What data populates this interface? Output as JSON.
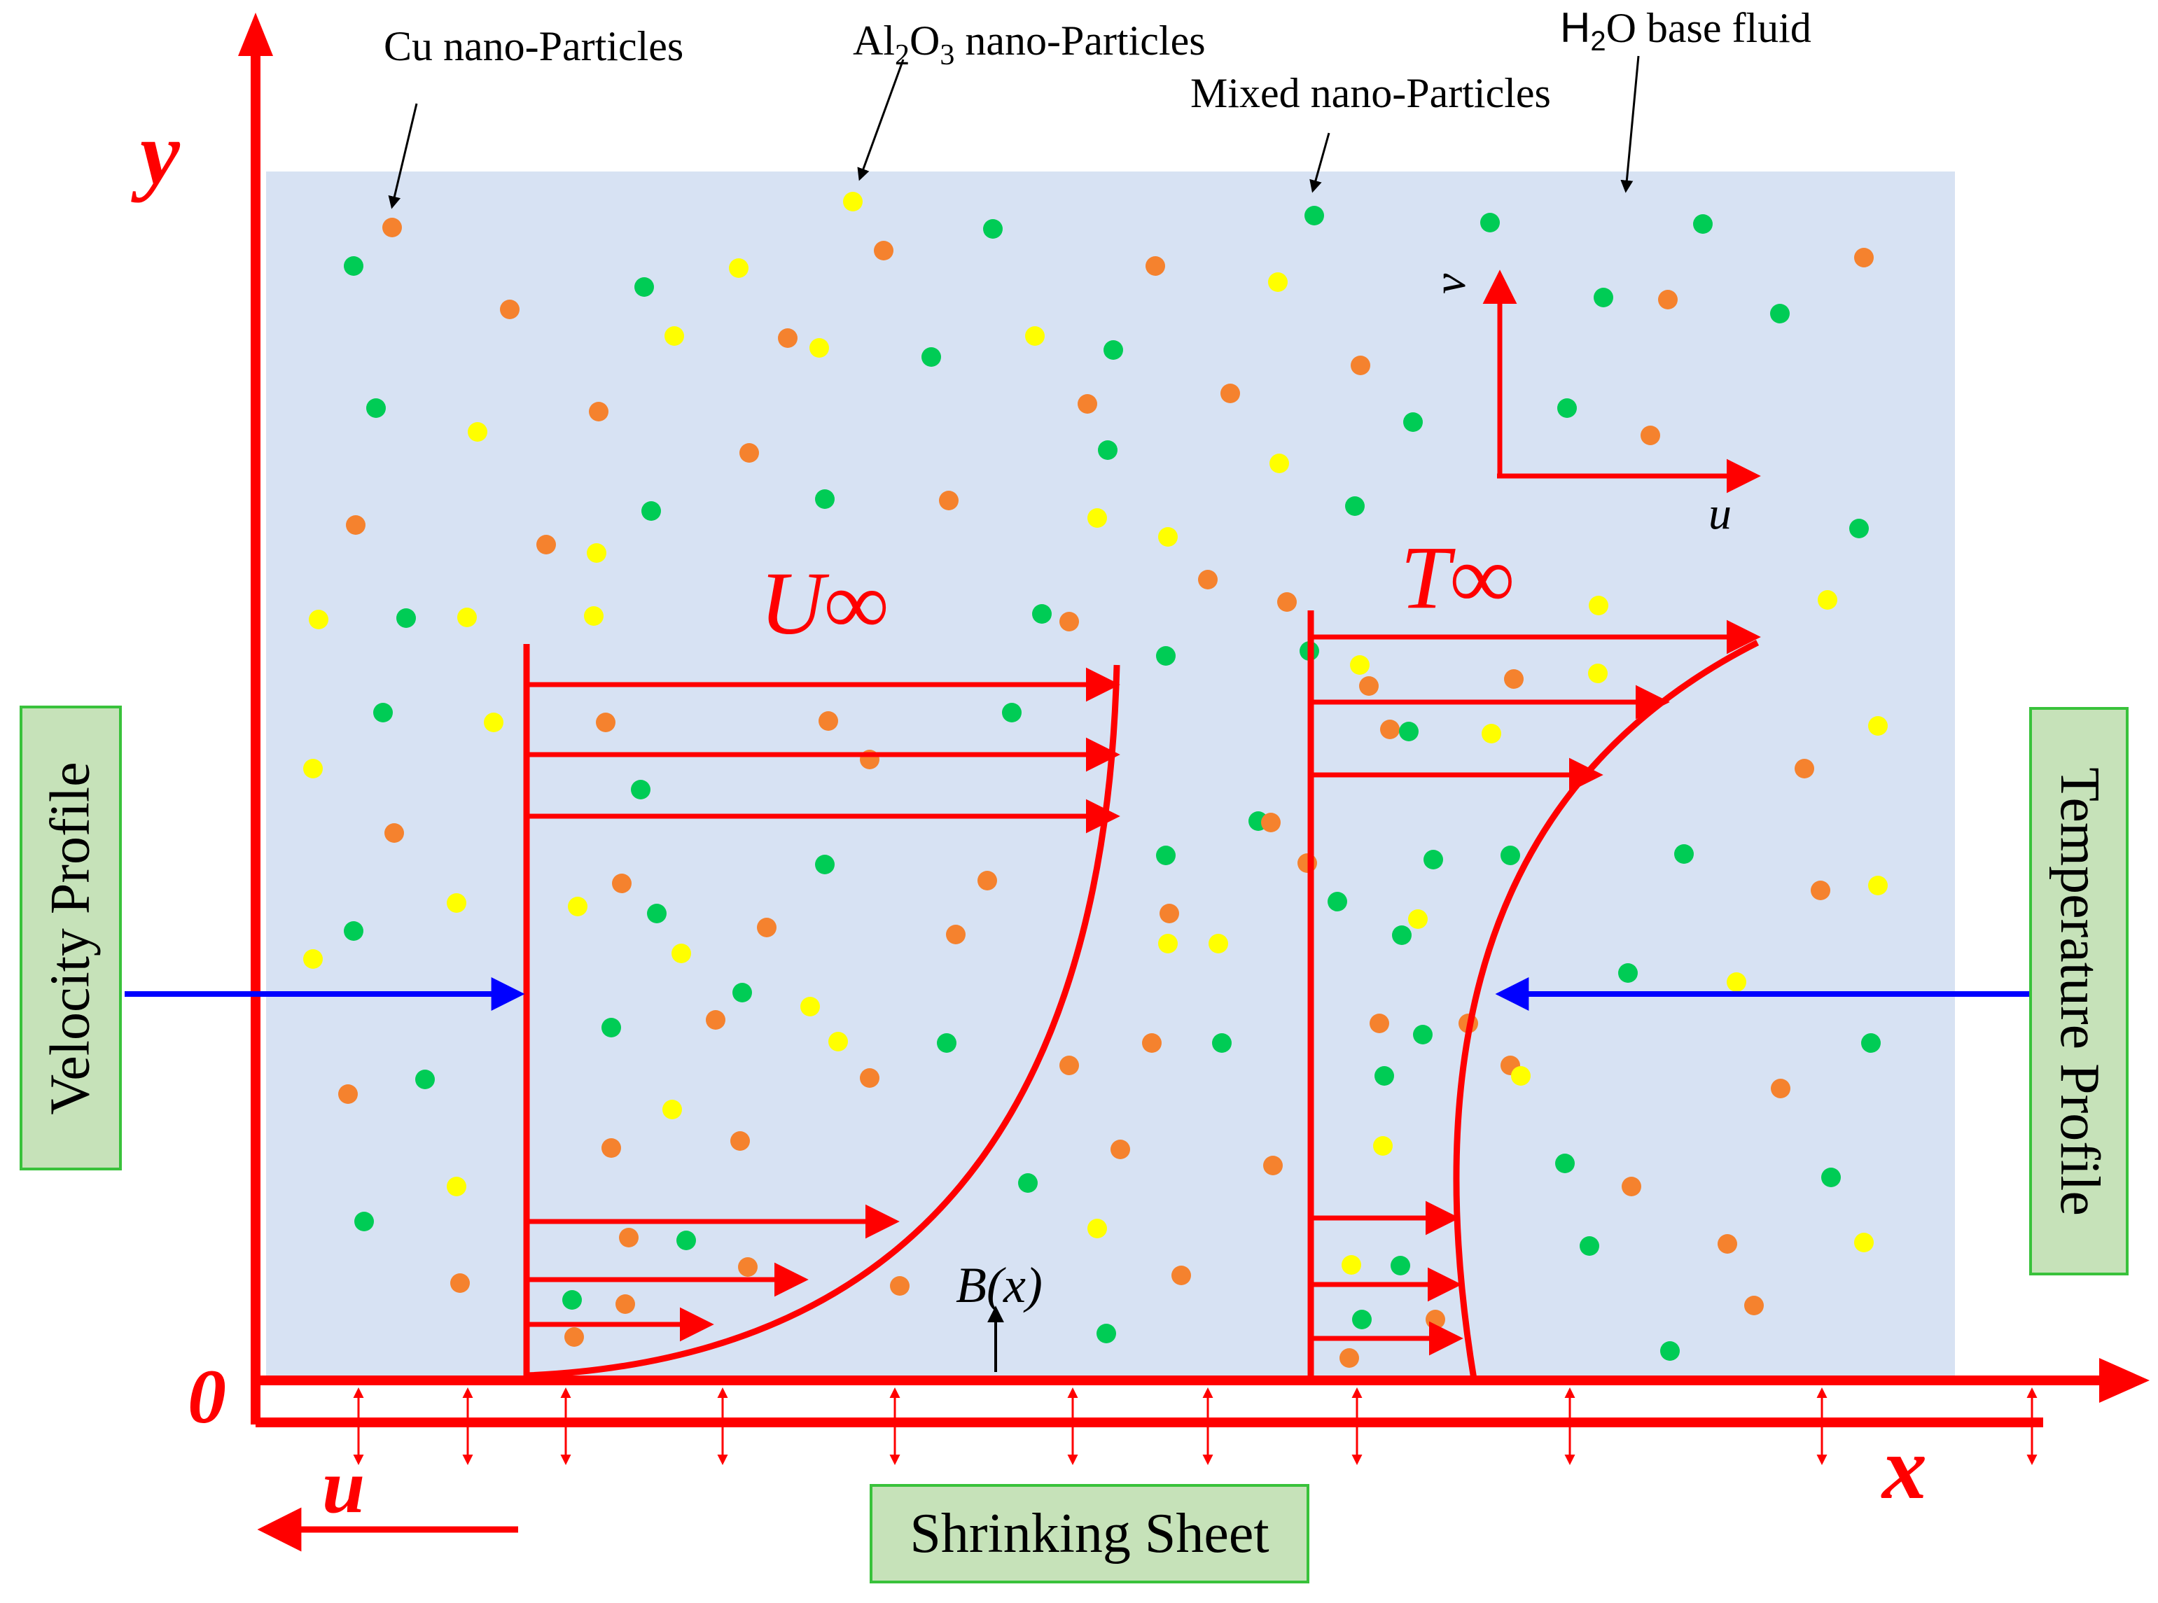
{
  "labels": {
    "cu": "Cu nano-Particles",
    "al2o3_a": "Al",
    "al2o3_sub1": "2",
    "al2o3_b": "O",
    "al2o3_sub2": "3",
    "al2o3_c": " nano-Particles",
    "mixed": "Mixed nano-Particles",
    "h2o_a": "H",
    "h2o_sub": "2",
    "h2o_b": "O base fluid",
    "y_axis": "y",
    "x_axis": "x",
    "origin": "0",
    "u_small": "u",
    "v_small": "v",
    "u_bottom": "u",
    "u_inf": "U∞",
    "t_inf": "T∞",
    "bx": "B(x)",
    "velocity_profile": "Velocity  Profile",
    "temperature_profile": "Temperature  Profile",
    "shrinking_sheet": "Shrinking Sheet"
  },
  "colors": {
    "fluid": "#d7e2f3",
    "axis_red": "#ff0000",
    "arrow_blue": "#0000ff",
    "cu_orange": "#f5822e",
    "al2o3_yellow": "#ffff00",
    "mixed_green": "#00cc55",
    "box_fill": "#c6e2b9",
    "box_border": "#39c23b"
  },
  "particles": {
    "cu": "orange",
    "al2o3": "yellow",
    "mixed": "green"
  }
}
